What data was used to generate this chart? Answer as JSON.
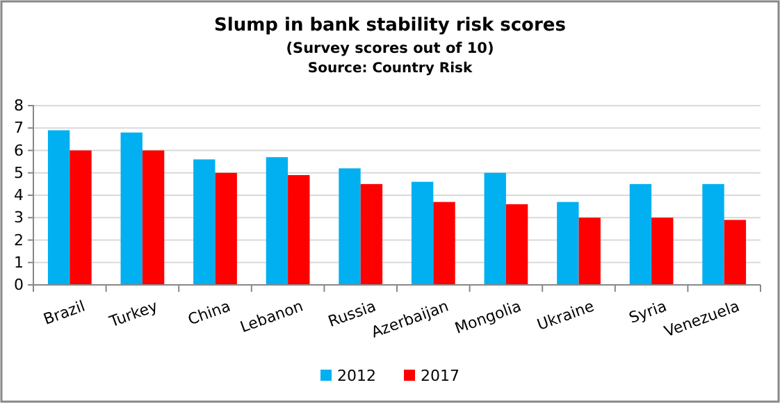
{
  "chart_data": {
    "type": "bar",
    "title": "Slump in bank stability risk scores",
    "subtitle": "(Survey scores out of 10)",
    "annotations": [
      "Source: Country Risk"
    ],
    "categories": [
      "Brazil",
      "Turkey",
      "China",
      "Lebanon",
      "Russia",
      "Azerbaijan",
      "Mongolia",
      "Ukraine",
      "Syria",
      "Venezuela"
    ],
    "series": [
      {
        "name": "2012",
        "color": "#00b0f0",
        "values": [
          6.9,
          6.8,
          5.6,
          5.7,
          5.2,
          4.6,
          5.0,
          3.7,
          4.5,
          4.5
        ]
      },
      {
        "name": "2017",
        "color": "#ff0000",
        "values": [
          6.0,
          6.0,
          5.0,
          4.9,
          4.5,
          3.7,
          3.6,
          3.0,
          3.0,
          2.9
        ]
      }
    ],
    "ylim": [
      0,
      8
    ],
    "yticks": [
      0,
      1,
      2,
      3,
      4,
      5,
      6,
      7,
      8
    ],
    "grid": "y",
    "legend": "bottom"
  }
}
